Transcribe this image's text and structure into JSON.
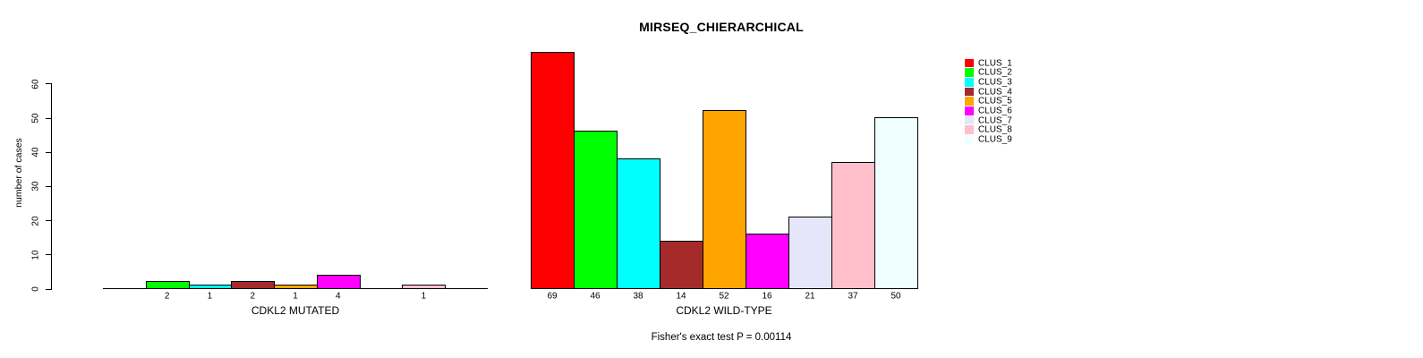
{
  "chart_data": {
    "type": "bar",
    "title": "MIRSEQ_CHIERARCHICAL",
    "ylabel": "number of cases",
    "ylim": [
      0,
      69
    ],
    "yticks": [
      0,
      10,
      20,
      30,
      40,
      50,
      60
    ],
    "grid": false,
    "legend_position": "top-right",
    "categories": [
      "CLUS_1",
      "CLUS_2",
      "CLUS_3",
      "CLUS_4",
      "CLUS_5",
      "CLUS_6",
      "CLUS_7",
      "CLUS_8",
      "CLUS_9"
    ],
    "colors": [
      "#FF0000",
      "#00FF00",
      "#00FFFF",
      "#A52A2A",
      "#FFA500",
      "#FF00FF",
      "#E6E6FA",
      "#FFC0CB",
      "#F0FFFF"
    ],
    "series": [
      {
        "name": "CDKL2 MUTATED",
        "values": [
          0,
          2,
          1,
          2,
          1,
          4,
          0,
          1,
          0
        ],
        "bar_labels": [
          "",
          "2",
          "1",
          "2",
          "1",
          "4",
          "",
          "1",
          ""
        ]
      },
      {
        "name": "CDKL2 WILD-TYPE",
        "values": [
          69,
          46,
          38,
          14,
          52,
          16,
          21,
          37,
          50
        ],
        "bar_labels": [
          "69",
          "46",
          "38",
          "14",
          "52",
          "16",
          "21",
          "37",
          "50"
        ]
      }
    ],
    "annotation": "Fisher's exact test P = 0.00114"
  }
}
